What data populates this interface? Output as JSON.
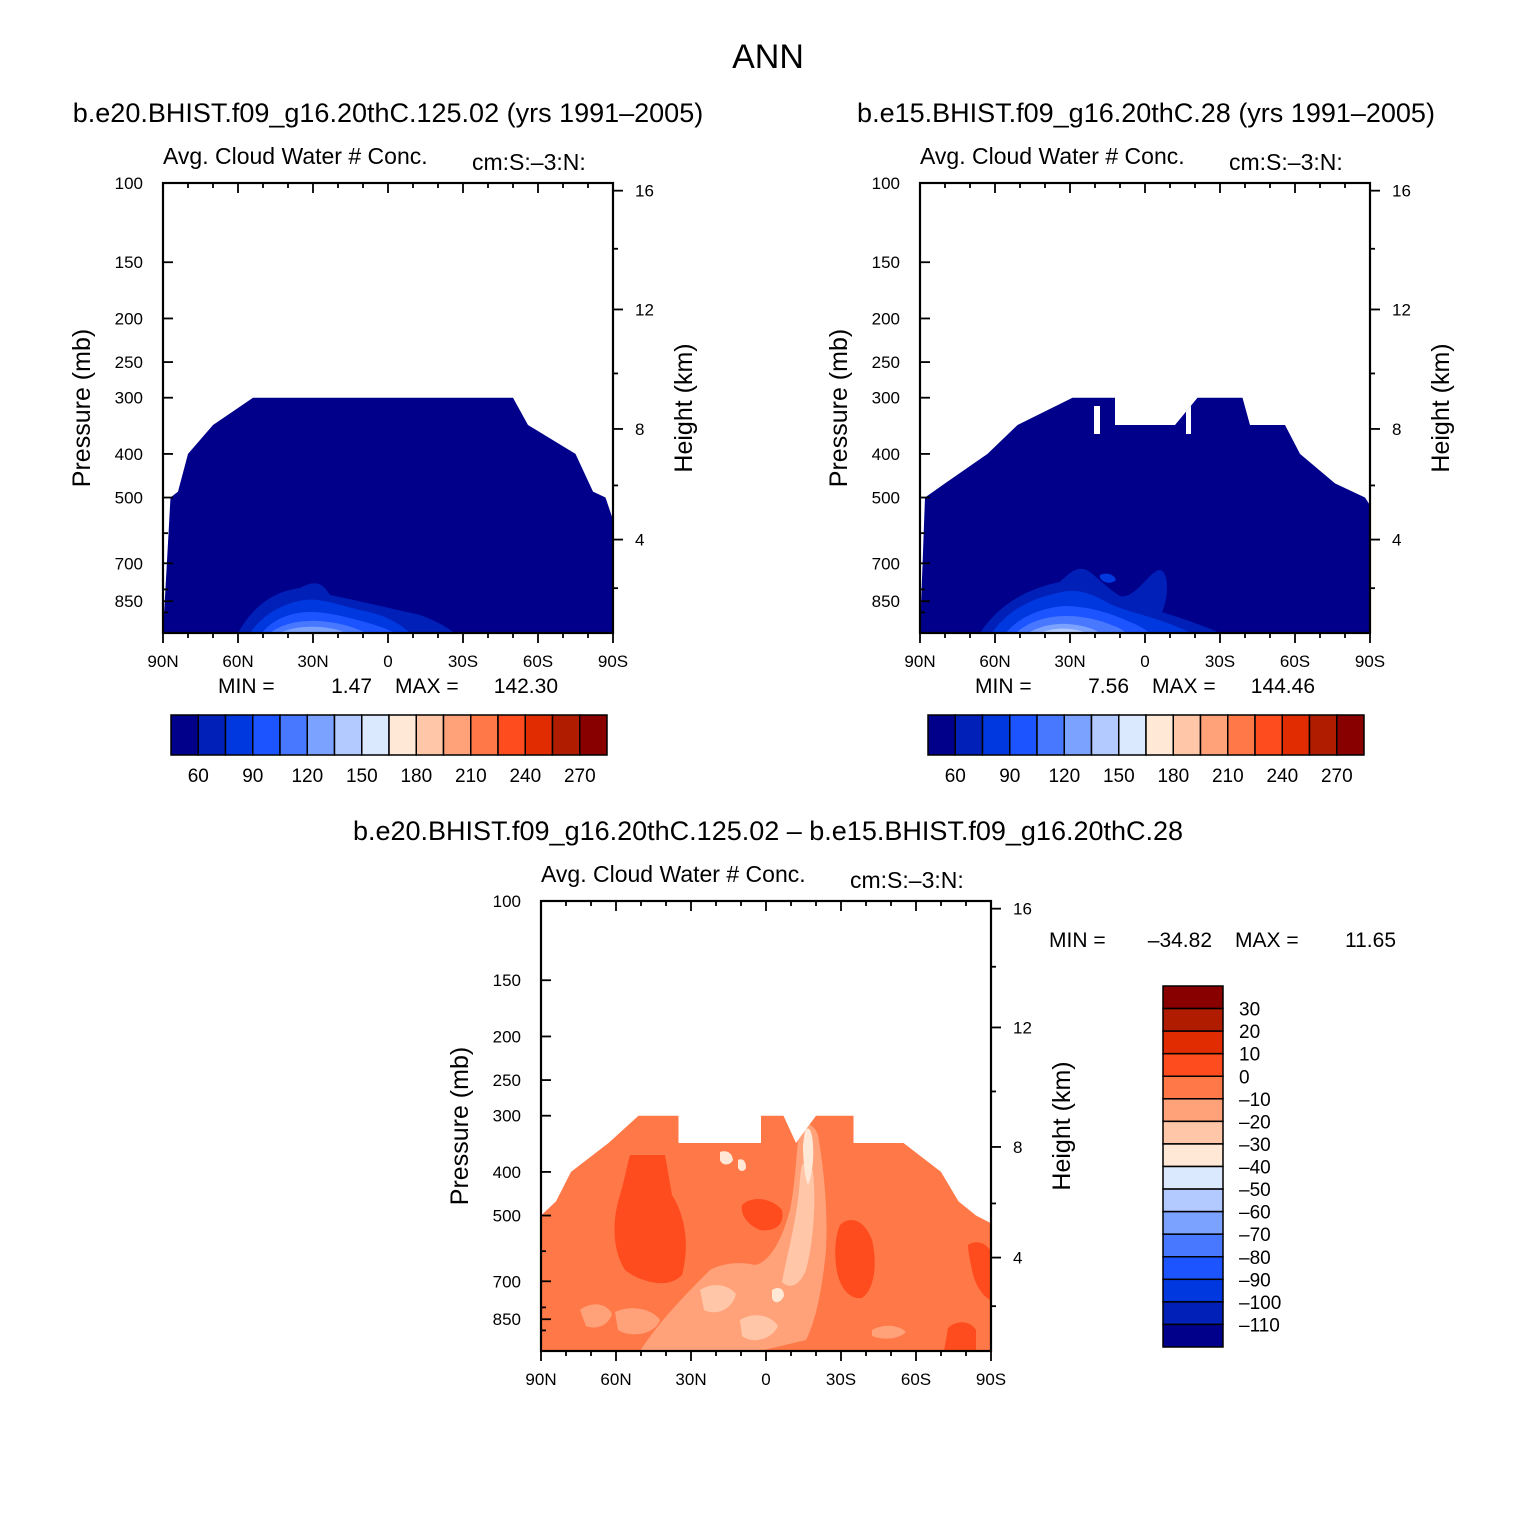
{
  "figure": {
    "title": "ANN",
    "diff_title": "b.e20.BHIST.f09_g16.20thC.125.02 – b.e15.BHIST.f09_g16.20thC.28"
  },
  "chart_data": [
    {
      "type": "heatmap",
      "panel": "test",
      "case_title": "b.e20.BHIST.f09_g16.20thC.125.02 (yrs 1991–2005)",
      "variable_label": "Avg. Cloud Water # Conc.",
      "units_label": "cm:S:–3:N:",
      "ylabel": "Pressure (mb)",
      "ylabel_right": "Height (km)",
      "x_ticks": [
        "90N",
        "60N",
        "30N",
        "0",
        "30S",
        "60S",
        "90S"
      ],
      "x_range": [
        90,
        -90
      ],
      "p_ticks": [
        100,
        150,
        200,
        250,
        300,
        400,
        500,
        700,
        850
      ],
      "p_range": [
        100,
        1000
      ],
      "z_ticks": [
        16,
        12,
        8,
        4
      ],
      "min_label": "MIN =",
      "min_value": "1.47",
      "max_label": "MAX =",
      "max_value": "142.30",
      "colorbar_labels": [
        "60",
        "90",
        "120",
        "150",
        "180",
        "210",
        "240",
        "270"
      ],
      "colorbar_colors": [
        "#00008b",
        "#0020b8",
        "#0038e0",
        "#1c54ff",
        "#4878ff",
        "#7ca2ff",
        "#b2caff",
        "#dbe9ff",
        "#ffe8d6",
        "#ffc6a8",
        "#ffa27a",
        "#ff7848",
        "#ff4c1e",
        "#e02c00",
        "#b01c00",
        "#880000"
      ],
      "profile": [
        [
          -90,
          1000
        ],
        [
          -87,
          500
        ],
        [
          -84,
          485
        ],
        [
          -80,
          400
        ],
        [
          -70,
          345
        ],
        [
          -54,
          300
        ],
        [
          0,
          300
        ],
        [
          50,
          300
        ],
        [
          56,
          345
        ],
        [
          75,
          400
        ],
        [
          82,
          485
        ],
        [
          87,
          500
        ],
        [
          90,
          560
        ]
      ],
      "structure": "uniform values below ~60 (dark blue) everywhere cloudy; slightly higher values near surface 60N-10S"
    },
    {
      "type": "heatmap",
      "panel": "control",
      "case_title": "b.e15.BHIST.f09_g16.20thC.28 (yrs 1991–2005)",
      "variable_label": "Avg. Cloud Water # Conc.",
      "units_label": "cm:S:–3:N:",
      "ylabel": "Pressure (mb)",
      "ylabel_right": "Height (km)",
      "x_ticks": [
        "90N",
        "60N",
        "30N",
        "0",
        "30S",
        "60S",
        "90S"
      ],
      "x_range": [
        90,
        -90
      ],
      "p_ticks": [
        100,
        150,
        200,
        250,
        300,
        400,
        500,
        700,
        850
      ],
      "p_range": [
        100,
        1000
      ],
      "z_ticks": [
        16,
        12,
        8,
        4
      ],
      "min_label": "MIN =",
      "min_value": "7.56",
      "max_label": "MAX =",
      "max_value": "144.46",
      "colorbar_labels": [
        "60",
        "90",
        "120",
        "150",
        "180",
        "210",
        "240",
        "270"
      ],
      "colorbar_colors": [
        "#00008b",
        "#0020b8",
        "#0038e0",
        "#1c54ff",
        "#4878ff",
        "#7ca2ff",
        "#b2caff",
        "#dbe9ff",
        "#ffe8d6",
        "#ffc6a8",
        "#ffa27a",
        "#ff7848",
        "#ff4c1e",
        "#e02c00",
        "#b01c00",
        "#880000"
      ],
      "profile": [
        [
          -90,
          1000
        ],
        [
          -88,
          500
        ],
        [
          -80,
          465
        ],
        [
          -63,
          400
        ],
        [
          -51,
          345
        ],
        [
          -29,
          300
        ],
        [
          -12,
          300
        ],
        [
          -12,
          345
        ],
        [
          12,
          345
        ],
        [
          21,
          300
        ],
        [
          39,
          300
        ],
        [
          42,
          345
        ],
        [
          56,
          345
        ],
        [
          62,
          400
        ],
        [
          76,
          465
        ],
        [
          88,
          500
        ],
        [
          90,
          520
        ]
      ]
    },
    {
      "type": "heatmap",
      "panel": "difference",
      "variable_label": "Avg. Cloud Water # Conc.",
      "units_label": "cm:S:–3:N:",
      "ylabel": "Pressure (mb)",
      "ylabel_right": "Height (km)",
      "x_ticks": [
        "90N",
        "60N",
        "30N",
        "0",
        "30S",
        "60S",
        "90S"
      ],
      "x_range": [
        90,
        -90
      ],
      "p_ticks": [
        100,
        150,
        200,
        250,
        300,
        400,
        500,
        700,
        850
      ],
      "p_range": [
        100,
        1000
      ],
      "z_ticks": [
        16,
        12,
        8,
        4
      ],
      "min_label": "MIN =",
      "min_value": "–34.82",
      "max_label": "MAX =",
      "max_value": "11.65",
      "colorbar_labels": [
        "30",
        "20",
        "10",
        "0",
        "–10",
        "–20",
        "–30",
        "–40",
        "–50",
        "–60",
        "–70",
        "–80",
        "–90",
        "–100",
        "–110"
      ],
      "colorbar_colors": [
        "#880000",
        "#b01c00",
        "#e02c00",
        "#ff4c1e",
        "#ff7848",
        "#ffa27a",
        "#ffc6a8",
        "#ffe8d6",
        "#dbe9ff",
        "#b2caff",
        "#7ca2ff",
        "#4878ff",
        "#1c54ff",
        "#0038e0",
        "#0020b8",
        "#00008b"
      ],
      "profile": [
        [
          -90,
          1000
        ],
        [
          -90,
          500
        ],
        [
          -84,
          465
        ],
        [
          -78,
          400
        ],
        [
          -63,
          345
        ],
        [
          -51,
          300
        ],
        [
          -35,
          300
        ],
        [
          -35,
          345
        ],
        [
          -2,
          345
        ],
        [
          -2,
          300
        ],
        [
          7,
          300
        ],
        [
          12,
          345
        ],
        [
          20,
          300
        ],
        [
          35,
          300
        ],
        [
          35,
          345
        ],
        [
          55,
          345
        ],
        [
          70,
          400
        ],
        [
          77,
          465
        ],
        [
          84,
          500
        ],
        [
          90,
          520
        ]
      ]
    }
  ]
}
